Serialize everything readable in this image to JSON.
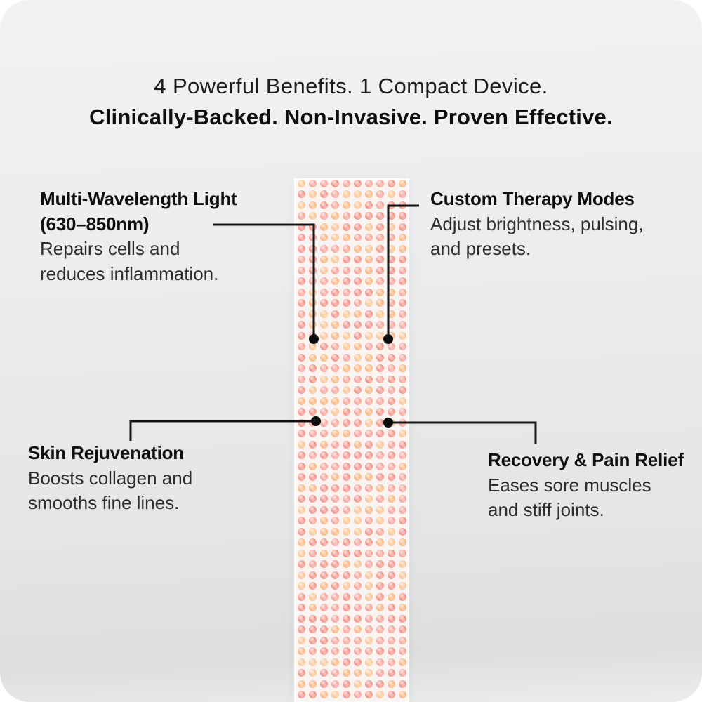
{
  "headline": {
    "line1": "4 Powerful Benefits. 1 Compact Device.",
    "line2": "Clinically-Backed. Non-Invasive. Proven Effective."
  },
  "callouts": {
    "multi_wavelength": {
      "title_lines": [
        "Multi-Wavelength Light",
        "(630–850nm)"
      ],
      "body_lines": [
        "Repairs cells and",
        "reduces inflammation."
      ]
    },
    "custom_therapy": {
      "title_lines": [
        "Custom Therapy Modes"
      ],
      "body_lines": [
        "Adjust brightness, pulsing,",
        "and presets."
      ]
    },
    "skin_rejuvenation": {
      "title_lines": [
        "Skin Rejuvenation"
      ],
      "body_lines": [
        "Boosts collagen and",
        "smooths fine lines."
      ]
    },
    "recovery_pain_relief": {
      "title_lines": [
        "Recovery & Pain Relief"
      ],
      "body_lines": [
        "Eases sore muscles",
        "and stiff joints."
      ]
    }
  },
  "led_panel": {
    "columns": 10,
    "background": "#f9f3f1",
    "dot_colors": {
      "pink": [
        "#f2998f",
        "#f5a99f"
      ],
      "orange": [
        "#f8ba8a",
        "#fac89b"
      ]
    },
    "orange_ratio": 0.32
  },
  "colors": {
    "connector": "#141414",
    "text_dark": "#0f0f0f",
    "card_background": "#e9eaea"
  }
}
